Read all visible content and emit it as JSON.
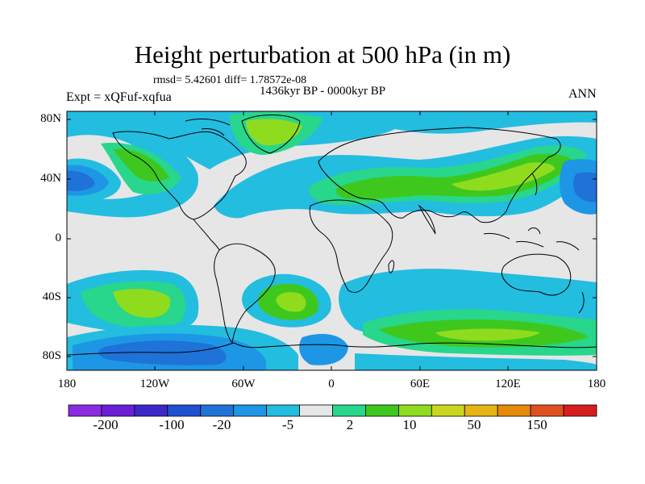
{
  "title": "Height perturbation at 500 hPa (in m)",
  "stats": "rmsd= 5.42601 diff= 1.78572e-08",
  "period": "1436kyr BP - 0000kyr BP",
  "experiment": "Expt = xQFuf-xqfua",
  "season": "ANN",
  "map": {
    "lat_ticks": [
      "80N",
      "40N",
      "0",
      "40S",
      "80S"
    ],
    "lon_ticks": [
      "180",
      "120W",
      "60W",
      "0",
      "60E",
      "120E",
      "180"
    ],
    "background_color": "#e6e6e6"
  },
  "colorbar": {
    "labels": [
      "-200",
      "-100",
      "-20",
      "-5",
      "2",
      "10",
      "50",
      "150"
    ],
    "colors": [
      "#8a2be2",
      "#6a1fd6",
      "#3c28c8",
      "#1e50d2",
      "#1f72d8",
      "#1e96e6",
      "#23bde0",
      "#e6e6e6",
      "#28d68c",
      "#3ec81e",
      "#8fdc1e",
      "#c8d71e",
      "#e6b414",
      "#e68a0a",
      "#e0501e",
      "#d71e1e"
    ]
  }
}
